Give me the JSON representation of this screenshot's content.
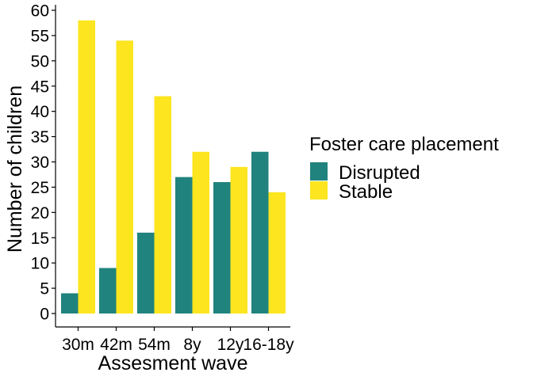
{
  "chart_data": {
    "type": "bar",
    "title": "",
    "xlabel": "Assesment wave",
    "ylabel": "Number of children",
    "categories": [
      "30m",
      "42m",
      "54m",
      "8y",
      "12y",
      "16-18y"
    ],
    "series": [
      {
        "name": "Disrupted",
        "values": [
          4,
          9,
          16,
          27,
          26,
          32
        ],
        "color": "#21837d"
      },
      {
        "name": "Stable",
        "values": [
          58,
          54,
          43,
          32,
          29,
          24
        ],
        "color": "#fde51f"
      }
    ],
    "ylim": [
      0,
      60
    ],
    "yticks": [
      0,
      5,
      10,
      15,
      20,
      25,
      30,
      35,
      40,
      45,
      50,
      55,
      60
    ],
    "grid": false,
    "legend": {
      "title": "Foster care placement",
      "placement": "right",
      "items": [
        "Disrupted",
        "Stable"
      ]
    }
  }
}
